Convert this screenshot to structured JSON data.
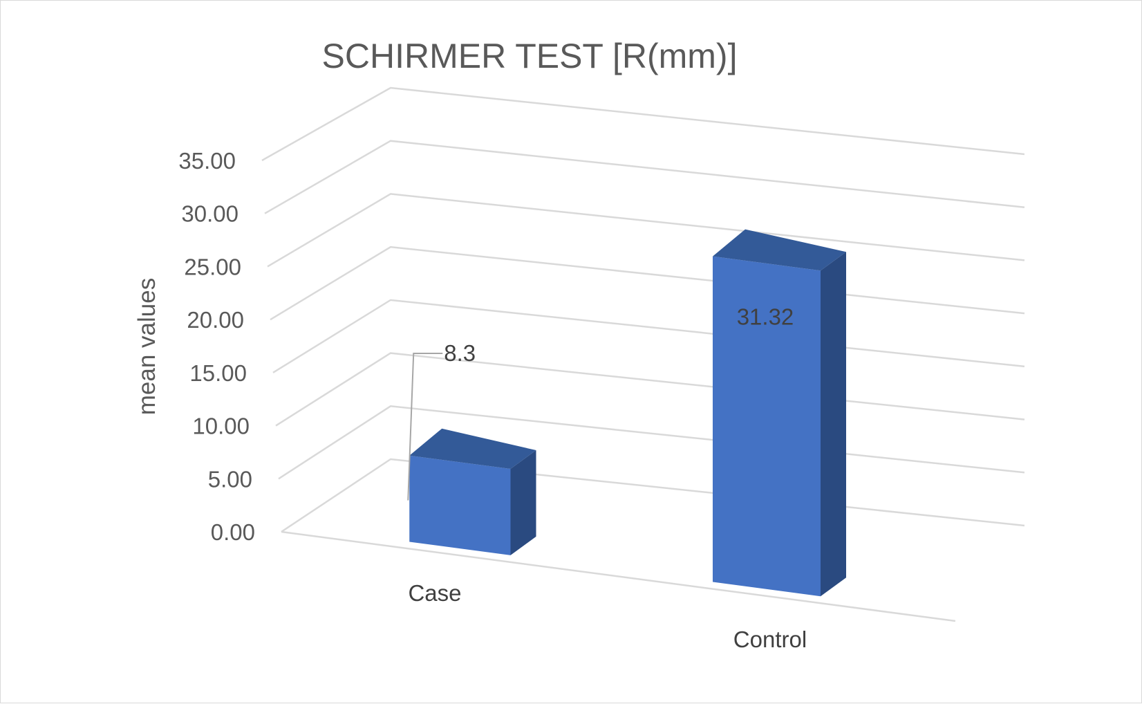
{
  "chart_data": {
    "type": "bar",
    "style": "3d-column",
    "title": "SCHIRMER TEST [R(mm)]",
    "xlabel": "",
    "ylabel": "mean values",
    "categories": [
      "Case",
      "Control"
    ],
    "values": [
      8.3,
      31.32
    ],
    "data_labels": [
      "8.3",
      "31.32"
    ],
    "ylim": [
      0,
      35
    ],
    "yticks": [
      "0.00",
      "5.00",
      "10.00",
      "15.00",
      "20.00",
      "25.00",
      "30.00",
      "35.00"
    ],
    "grid": true,
    "legend": "none",
    "colors": {
      "front": "#4472c4",
      "top": "#335a98",
      "side": "#2a4a80",
      "grid": "#d9d9d9",
      "text": "#595959"
    }
  }
}
